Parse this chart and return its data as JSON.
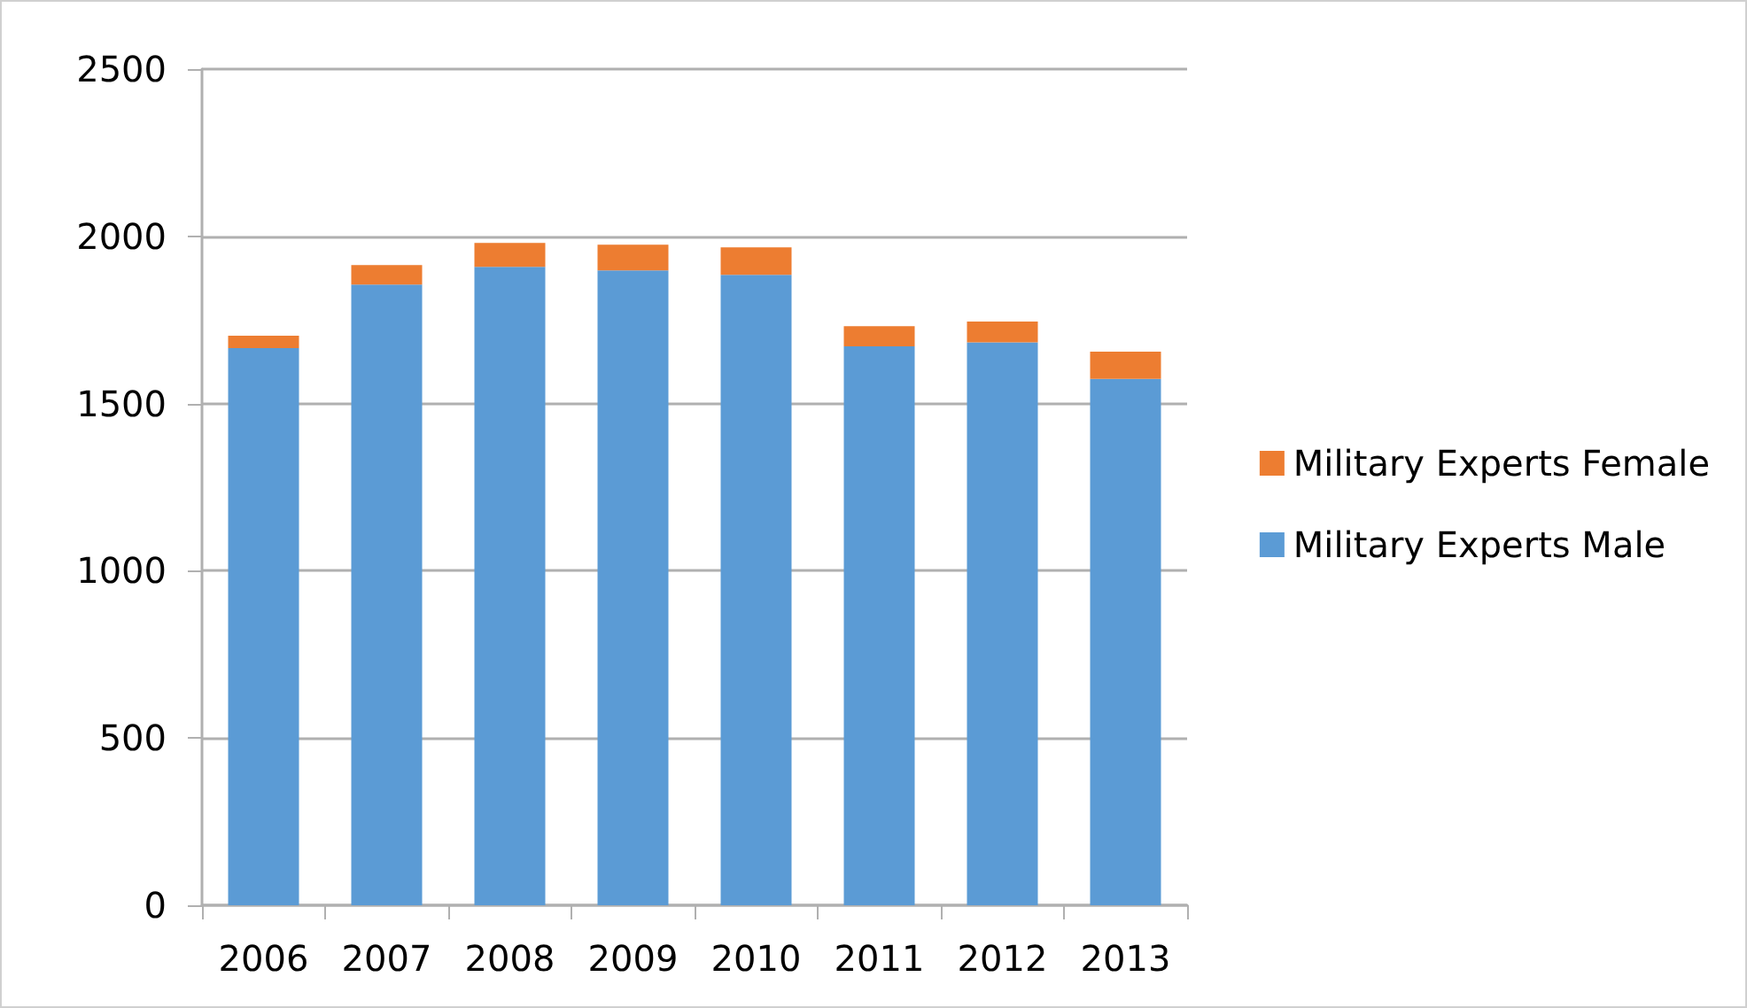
{
  "chart_data": {
    "type": "bar",
    "stacked": true,
    "categories": [
      "2006",
      "2007",
      "2008",
      "2009",
      "2010",
      "2011",
      "2012",
      "2013"
    ],
    "series": [
      {
        "name": "Military Experts Male",
        "color": "#5b9bd5",
        "values": [
          1666,
          1856,
          1909,
          1898,
          1885,
          1671,
          1683,
          1574
        ]
      },
      {
        "name": "Military Experts Female",
        "color": "#ed7d31",
        "values": [
          37,
          58,
          71,
          77,
          82,
          60,
          62,
          81
        ]
      }
    ],
    "ylim": [
      0,
      2500
    ],
    "yticks": [
      0,
      500,
      1000,
      1500,
      2000,
      2500
    ],
    "grid": "y",
    "legend": "right"
  }
}
